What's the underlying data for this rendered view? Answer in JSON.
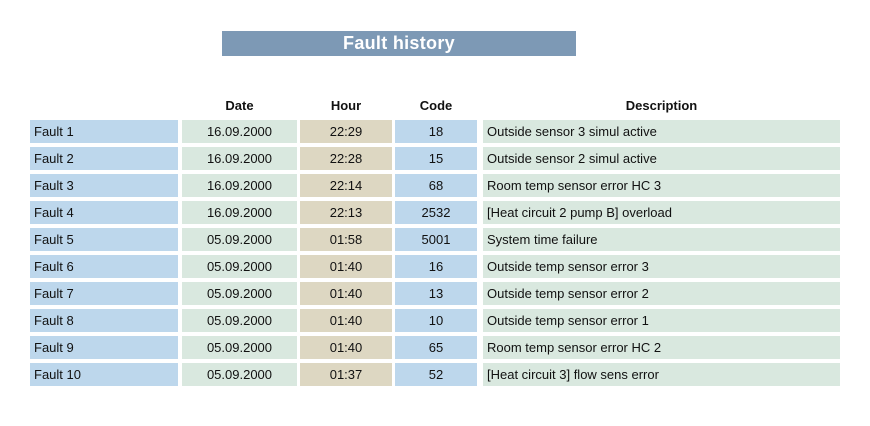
{
  "title": "Fault history",
  "colors": {
    "banner_bg": "#7d99b5",
    "banner_text": "#ffffff",
    "blue_cell": "#bdd7ec",
    "green_cell": "#d9e8df",
    "tan_cell": "#ddd7c2",
    "text": "#111111"
  },
  "table": {
    "headers": {
      "date": "Date",
      "hour": "Hour",
      "code": "Code",
      "description": "Description"
    },
    "rows": [
      {
        "label": "Fault 1",
        "date": "16.09.2000",
        "hour": "22:29",
        "code": "18",
        "description": "Outside sensor 3 simul active"
      },
      {
        "label": "Fault 2",
        "date": "16.09.2000",
        "hour": "22:28",
        "code": "15",
        "description": "Outside sensor 2 simul active"
      },
      {
        "label": "Fault 3",
        "date": "16.09.2000",
        "hour": "22:14",
        "code": "68",
        "description": "Room temp sensor error HC 3"
      },
      {
        "label": "Fault 4",
        "date": "16.09.2000",
        "hour": "22:13",
        "code": "2532",
        "description": "[Heat circuit 2 pump B] overload"
      },
      {
        "label": "Fault 5",
        "date": "05.09.2000",
        "hour": "01:58",
        "code": "5001",
        "description": "System time failure"
      },
      {
        "label": "Fault 6",
        "date": "05.09.2000",
        "hour": "01:40",
        "code": "16",
        "description": "Outside temp sensor error 3"
      },
      {
        "label": "Fault 7",
        "date": "05.09.2000",
        "hour": "01:40",
        "code": "13",
        "description": "Outside temp sensor error 2"
      },
      {
        "label": "Fault 8",
        "date": "05.09.2000",
        "hour": "01:40",
        "code": "10",
        "description": "Outside temp sensor error 1"
      },
      {
        "label": "Fault 9",
        "date": "05.09.2000",
        "hour": "01:40",
        "code": "65",
        "description": "Room temp sensor error HC 2"
      },
      {
        "label": "Fault 10",
        "date": "05.09.2000",
        "hour": "01:37",
        "code": "52",
        "description": "[Heat circuit 3] flow sens error"
      }
    ]
  }
}
